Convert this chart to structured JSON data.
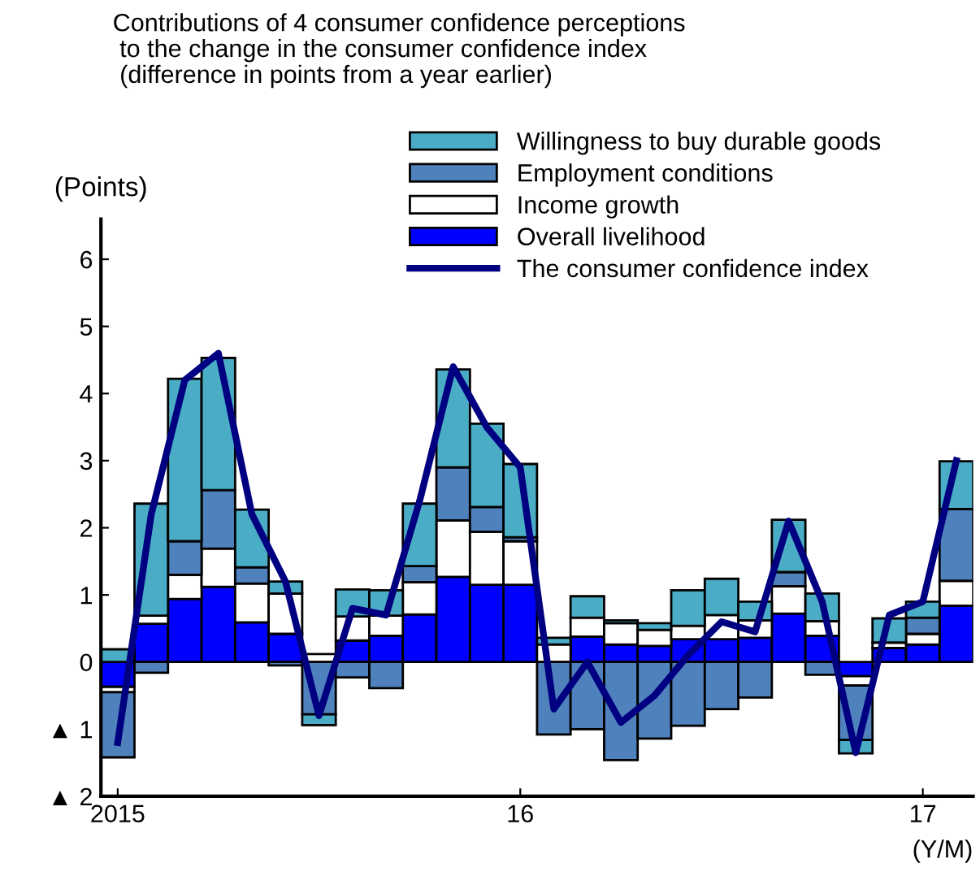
{
  "chart_data": {
    "type": "bar",
    "stacked": true,
    "title": "Contributions of 4 consumer confidence perceptions\n to the change in the consumer confidence index\n (difference in points from a year earlier)",
    "ylabel": "(Points)",
    "xlabel": "(Y/M)",
    "categories": [
      "2015",
      null,
      null,
      null,
      null,
      null,
      null,
      null,
      null,
      null,
      null,
      null,
      "16",
      null,
      null,
      null,
      null,
      null,
      null,
      null,
      null,
      null,
      null,
      null,
      "17",
      null
    ],
    "ylim": [
      -2,
      6.6
    ],
    "yticks": [
      {
        "value": -2,
        "label": "▲ 2"
      },
      {
        "value": -1,
        "label": "▲ 1"
      },
      0,
      1,
      2,
      3,
      4,
      5,
      6
    ],
    "legend": "top right",
    "grid": false,
    "series": [
      {
        "name": "Overall livelihood",
        "color": "#0000ff",
        "values": [
          -0.37,
          0.57,
          0.94,
          1.12,
          0.59,
          0.42,
          null,
          0.32,
          0.39,
          0.71,
          1.27,
          1.15,
          1.15,
          0,
          0.38,
          0.26,
          0.24,
          0.34,
          0.34,
          0.36,
          0.72,
          0.39,
          -0.21,
          0.21,
          0.26,
          0.84
        ]
      },
      {
        "name": "Income growth",
        "color": "#ffffff",
        "values": [
          -0.08,
          0.12,
          0.36,
          0.57,
          0.58,
          0.6,
          0.12,
          0.36,
          0.3,
          0.48,
          0.84,
          0.79,
          0.65,
          0.26,
          0.28,
          0.32,
          0.24,
          0.2,
          0.36,
          0.26,
          0.41,
          0.22,
          -0.14,
          0.08,
          0.16,
          0.37
        ]
      },
      {
        "name": "Employment conditions",
        "color": "#4f81bd",
        "values": [
          -0.97,
          -0.16,
          0.5,
          0.87,
          0.24,
          -0.05,
          -0.78,
          -0.23,
          -0.39,
          0.24,
          0.79,
          0.37,
          0.06,
          -1.08,
          -1.0,
          -1.46,
          -1.14,
          -0.95,
          -0.7,
          -0.53,
          0.21,
          -0.19,
          -0.81,
          null,
          0.24,
          1.07
        ]
      },
      {
        "name": "Willingness to buy durable goods",
        "color": "#4bacc6",
        "values": [
          0.19,
          1.67,
          2.42,
          1.97,
          0.86,
          0.18,
          -0.16,
          0.4,
          0.38,
          0.93,
          1.46,
          1.24,
          1.09,
          0.1,
          0.32,
          0.04,
          0.1,
          0.53,
          0.54,
          0.28,
          0.78,
          0.41,
          -0.2,
          0.36,
          0.24,
          0.71
        ]
      },
      {
        "name": "The consumer confidence index",
        "type": "line",
        "color": "#000080",
        "line_style": "solid",
        "values": [
          -1.2,
          2.2,
          4.2,
          4.6,
          2.2,
          1.2,
          -0.8,
          0.8,
          0.7,
          2.4,
          4.4,
          3.5,
          2.9,
          -0.7,
          0,
          -0.9,
          -0.5,
          0.1,
          0.6,
          0.45,
          2.1,
          0.9,
          -1.35,
          0.7,
          0.9,
          3.0
        ]
      }
    ]
  }
}
